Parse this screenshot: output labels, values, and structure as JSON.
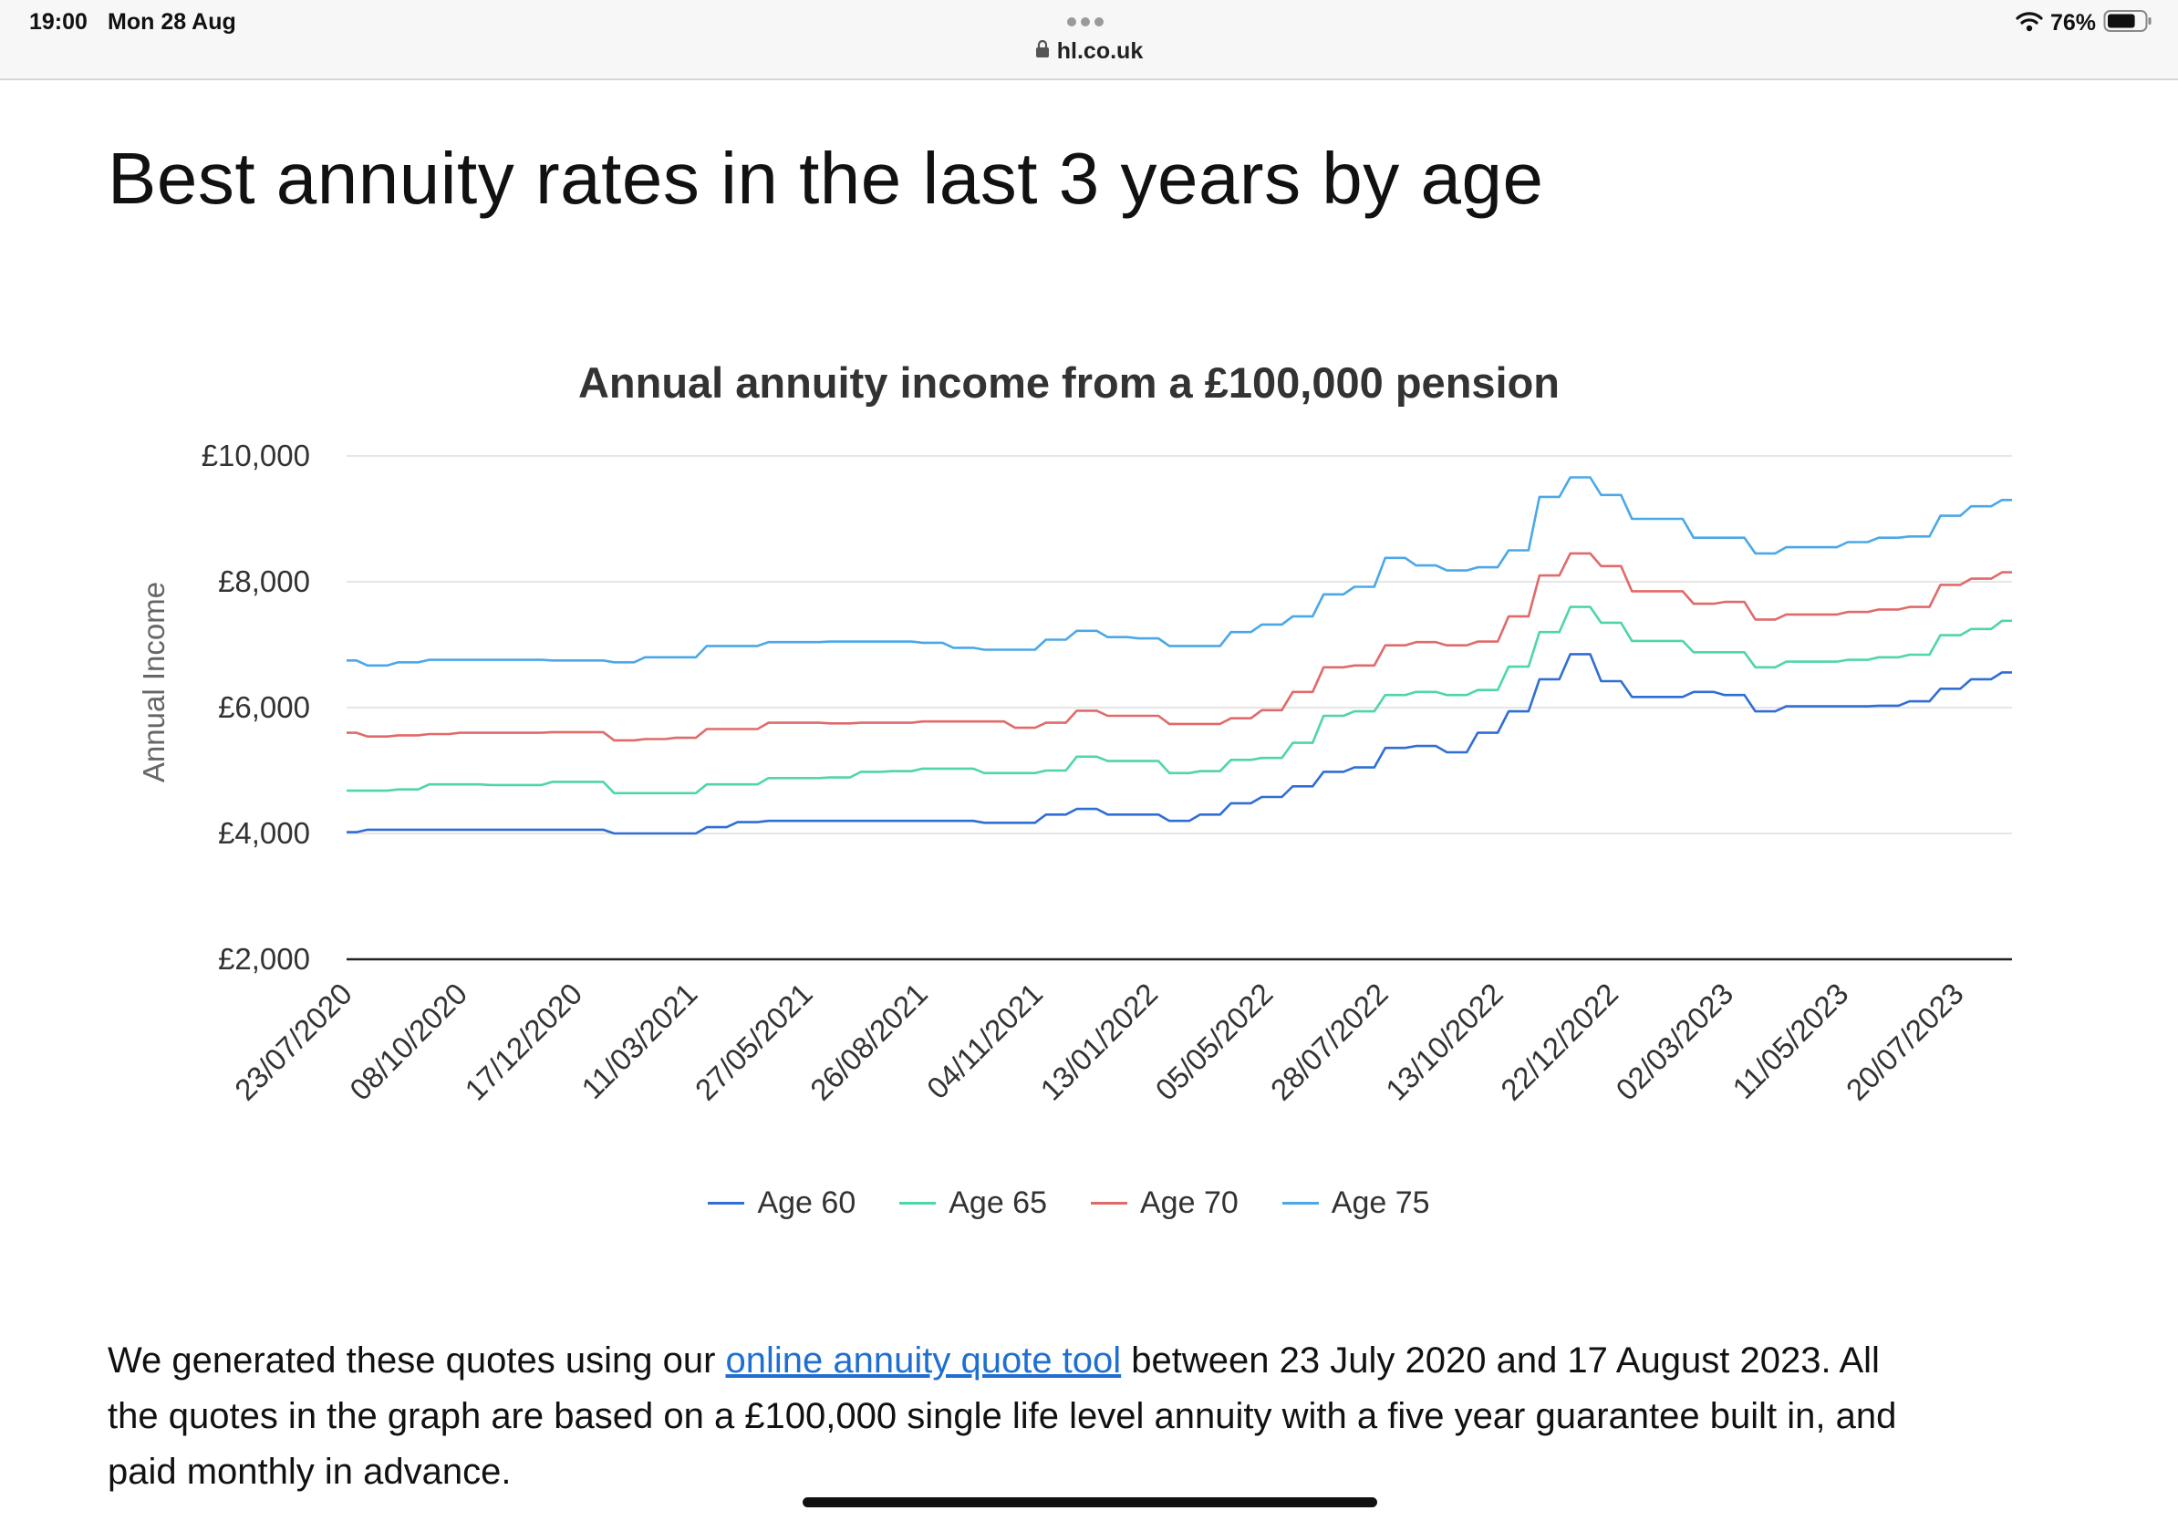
{
  "status_bar": {
    "time": "19:00",
    "date": "Mon 28 Aug",
    "battery_percent": "76%",
    "battery_level": 0.76,
    "url": "hl.co.uk"
  },
  "page": {
    "title": "Best annuity rates in the last 3 years by age",
    "paragraph": {
      "before_link": "We generated these quotes using our ",
      "link_text": "online annuity quote tool",
      "after_link": " between 23 July 2020 and 17 August 2023. All the quotes in the graph are based on a £100,000 single life level annuity with a five year guarantee built in, and paid monthly in advance."
    }
  },
  "colors": {
    "age60": "#2f6ed4",
    "age65": "#4fd6a5",
    "age70": "#e06a6a",
    "age75": "#4aa8e8",
    "link": "#1f6fd1"
  },
  "chart_data": {
    "type": "line",
    "title": "Annual annuity income from a £100,000 pension",
    "ylabel": "Annual Income",
    "xlabel": "",
    "ylim": [
      2000,
      10000
    ],
    "yticks": [
      10000,
      8000,
      6000,
      4000,
      2000
    ],
    "ytick_labels": [
      "£10,000",
      "£8,000",
      "£6,000",
      "£4,000",
      "£2,000"
    ],
    "x_tick_labels": [
      "23/07/2020",
      "08/10/2020",
      "17/12/2020",
      "11/03/2021",
      "27/05/2021",
      "26/08/2021",
      "04/11/2021",
      "13/01/2022",
      "05/05/2022",
      "28/07/2022",
      "13/10/2022",
      "22/12/2022",
      "02/03/2023",
      "11/05/2023",
      "20/07/2023"
    ],
    "grid": true,
    "legend_position": "bottom",
    "x": [
      "23/07/2020",
      "13/08/2020",
      "03/09/2020",
      "24/09/2020",
      "08/10/2020",
      "29/10/2020",
      "19/11/2020",
      "10/12/2020",
      "17/12/2020",
      "07/01/2021",
      "28/01/2021",
      "18/02/2021",
      "11/03/2021",
      "01/04/2021",
      "22/04/2021",
      "13/05/2021",
      "27/05/2021",
      "17/06/2021",
      "08/07/2021",
      "29/07/2021",
      "26/08/2021",
      "16/09/2021",
      "07/10/2021",
      "04/11/2021",
      "25/11/2021",
      "16/12/2021",
      "13/01/2022",
      "03/02/2022",
      "24/02/2022",
      "17/03/2022",
      "07/04/2022",
      "05/05/2022",
      "26/05/2022",
      "16/06/2022",
      "07/07/2022",
      "28/07/2022",
      "18/08/2022",
      "08/09/2022",
      "29/09/2022",
      "13/10/2022",
      "03/11/2022",
      "24/11/2022",
      "15/12/2022",
      "22/12/2022",
      "12/01/2023",
      "02/02/2023",
      "02/03/2023",
      "23/03/2023",
      "13/04/2023",
      "11/05/2023",
      "01/06/2023",
      "22/06/2023",
      "20/07/2023",
      "10/08/2023",
      "17/08/2023"
    ],
    "series": [
      {
        "name": "Age 60",
        "values": [
          4020,
          4060,
          4060,
          4060,
          4060,
          4060,
          4060,
          4060,
          4060,
          4000,
          4000,
          4000,
          4100,
          4180,
          4200,
          4200,
          4200,
          4200,
          4200,
          4200,
          4200,
          4170,
          4170,
          4300,
          4390,
          4300,
          4300,
          4200,
          4300,
          4480,
          4580,
          4750,
          4980,
          5050,
          5360,
          5390,
          5290,
          5600,
          5940,
          6450,
          6850,
          6420,
          6170,
          6170,
          6250,
          6200,
          5940,
          6020,
          6020,
          6020,
          6030,
          6100,
          6300,
          6450,
          6560
        ]
      },
      {
        "name": "Age 65",
        "values": [
          4680,
          4680,
          4700,
          4780,
          4780,
          4770,
          4770,
          4820,
          4820,
          4640,
          4640,
          4640,
          4780,
          4780,
          4880,
          4880,
          4890,
          4980,
          4990,
          5030,
          5030,
          4960,
          4960,
          5000,
          5220,
          5150,
          5150,
          4960,
          4990,
          5170,
          5200,
          5440,
          5870,
          5940,
          6200,
          6250,
          6200,
          6280,
          6650,
          7200,
          7600,
          7350,
          7060,
          7060,
          6880,
          6880,
          6640,
          6730,
          6730,
          6760,
          6800,
          6840,
          7150,
          7250,
          7380
        ]
      },
      {
        "name": "Age 70",
        "values": [
          5600,
          5540,
          5560,
          5580,
          5600,
          5600,
          5600,
          5610,
          5610,
          5480,
          5500,
          5520,
          5660,
          5660,
          5760,
          5760,
          5750,
          5760,
          5760,
          5780,
          5780,
          5780,
          5680,
          5760,
          5950,
          5870,
          5870,
          5740,
          5740,
          5830,
          5960,
          6250,
          6640,
          6670,
          6990,
          7040,
          6990,
          7050,
          7450,
          8100,
          8450,
          8250,
          7850,
          7850,
          7650,
          7680,
          7400,
          7480,
          7480,
          7520,
          7560,
          7600,
          7950,
          8050,
          8150
        ]
      },
      {
        "name": "Age 75",
        "values": [
          6750,
          6670,
          6720,
          6760,
          6760,
          6760,
          6760,
          6750,
          6750,
          6720,
          6800,
          6800,
          6980,
          6980,
          7040,
          7040,
          7050,
          7050,
          7050,
          7030,
          6950,
          6920,
          6920,
          7080,
          7220,
          7120,
          7100,
          6980,
          6980,
          7200,
          7320,
          7450,
          7800,
          7920,
          8380,
          8260,
          8180,
          8230,
          8500,
          9350,
          9660,
          9380,
          9000,
          9000,
          8700,
          8700,
          8450,
          8550,
          8550,
          8630,
          8700,
          8720,
          9050,
          9200,
          9300
        ]
      }
    ]
  }
}
